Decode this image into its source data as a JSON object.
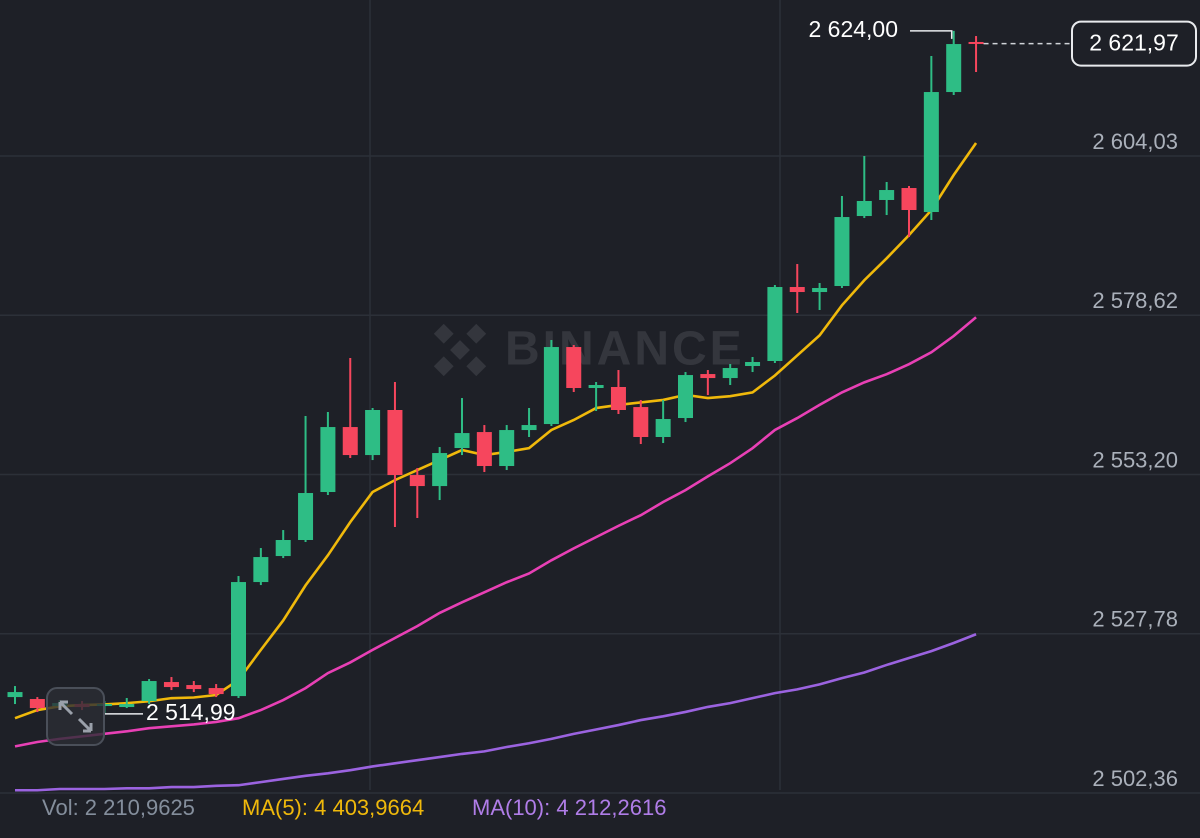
{
  "chart_data": {
    "type": "candlestick",
    "ylim": [
      2498.05,
      2628.93
    ],
    "yticks": [
      {
        "value": 2502.36,
        "label": "2 502,36"
      },
      {
        "value": 2527.78,
        "label": "2 527,78"
      },
      {
        "value": 2553.2,
        "label": "2 553,20"
      },
      {
        "value": 2578.62,
        "label": "2 578,62"
      },
      {
        "value": 2604.03,
        "label": "2 604,03"
      }
    ],
    "grid": true,
    "watermark": "BINANCE",
    "candles": {
      "up_color": "#2ebd85",
      "down_color": "#f6465d",
      "open": [
        2517.67,
        2517.36,
        2516.24,
        2516.56,
        2516.24,
        2516.08,
        2517.04,
        2520.07,
        2519.59,
        2519.11,
        2517.83,
        2536.03,
        2540.18,
        2542.74,
        2550.4,
        2560.77,
        2556.3,
        2563.49,
        2553.11,
        2551.35,
        2557.42,
        2559.97,
        2554.55,
        2560.29,
        2561.25,
        2573.54,
        2567.0,
        2567.16,
        2563.96,
        2559.18,
        2562.21,
        2569.23,
        2568.59,
        2570.51,
        2571.31,
        2583.12,
        2582.32,
        2583.28,
        2594.45,
        2597.01,
        2598.92,
        2595.09,
        2614.24,
        2622.23
      ],
      "high": [
        2519.43,
        2517.67,
        2517.2,
        2517.04,
        2517.04,
        2517.52,
        2520.55,
        2520.87,
        2520.23,
        2519.75,
        2536.99,
        2541.46,
        2544.33,
        2562.53,
        2563.17,
        2571.79,
        2563.81,
        2567.96,
        2554.23,
        2557.58,
        2565.4,
        2561.09,
        2561.09,
        2563.81,
        2574.66,
        2573.86,
        2567.96,
        2569.87,
        2565.08,
        2565.08,
        2569.55,
        2569.87,
        2570.83,
        2571.95,
        2583.44,
        2586.79,
        2583.76,
        2597.64,
        2604.03,
        2599.88,
        2599.24,
        2619.99,
        2624.0,
        2623.18
      ],
      "low": [
        2516.56,
        2515.28,
        2515.76,
        2515.6,
        2514.99,
        2515.92,
        2516.56,
        2518.79,
        2518.47,
        2517.67,
        2517.52,
        2535.55,
        2539.86,
        2542.42,
        2549.92,
        2555.82,
        2555.5,
        2544.81,
        2546.25,
        2549.12,
        2556.3,
        2553.59,
        2553.91,
        2559.18,
        2560.93,
        2566.36,
        2563.33,
        2562.85,
        2558.06,
        2558.22,
        2561.57,
        2565.88,
        2567.48,
        2569.55,
        2570.99,
        2578.97,
        2579.45,
        2582.96,
        2594.13,
        2594.61,
        2591.1,
        2593.81,
        2613.77,
        2617.44
      ],
      "close": [
        2518.47,
        2515.92,
        2516.72,
        2516.08,
        2516.56,
        2516.56,
        2520.23,
        2519.27,
        2518.95,
        2518.15,
        2536.03,
        2540.02,
        2542.74,
        2550.24,
        2560.77,
        2556.3,
        2563.49,
        2553.11,
        2551.35,
        2556.62,
        2559.81,
        2554.55,
        2560.29,
        2561.09,
        2573.54,
        2567.0,
        2567.48,
        2563.49,
        2559.18,
        2562.05,
        2569.07,
        2568.59,
        2570.19,
        2571.15,
        2583.12,
        2582.32,
        2582.96,
        2594.29,
        2596.85,
        2598.6,
        2595.41,
        2614.24,
        2621.9,
        2621.97
      ]
    },
    "series": [
      {
        "color": "#f0b90b",
        "values": [
          2514.3,
          2515.6,
          2516.2,
          2516.4,
          2516.5,
          2516.7,
          2517.0,
          2517.5,
          2517.6,
          2518.0,
          2520.4,
          2525.2,
          2529.9,
          2535.5,
          2540.3,
          2545.6,
          2550.4,
          2552.3,
          2553.9,
          2555.5,
          2557.1,
          2556.3,
          2556.8,
          2557.4,
          2560.3,
          2561.9,
          2563.8,
          2564.3,
          2564.7,
          2565.1,
          2565.9,
          2565.4,
          2565.7,
          2566.3,
          2569.0,
          2572.2,
          2575.4,
          2580.2,
          2584.2,
          2587.7,
          2591.4,
          2595.4,
          2601.0,
          2606.1
        ]
      },
      {
        "color": "#e840b5",
        "values": [
          2509.8,
          2510.5,
          2511.0,
          2511.4,
          2511.8,
          2512.2,
          2512.7,
          2513.0,
          2513.3,
          2513.7,
          2514.3,
          2515.6,
          2517.2,
          2519.1,
          2521.5,
          2523.2,
          2525.2,
          2527.1,
          2529.0,
          2531.1,
          2532.8,
          2534.4,
          2536.0,
          2537.4,
          2539.5,
          2541.4,
          2543.2,
          2545.0,
          2546.7,
          2548.8,
          2550.7,
          2552.9,
          2555.0,
          2557.4,
          2560.3,
          2562.2,
          2564.3,
          2566.3,
          2567.9,
          2569.2,
          2570.8,
          2572.7,
          2575.3,
          2578.3
        ]
      },
      {
        "color": "#9b63e0",
        "values": [
          2502.8,
          2502.8,
          2503.0,
          2503.0,
          2503.0,
          2503.1,
          2503.1,
          2503.3,
          2503.3,
          2503.5,
          2503.6,
          2504.1,
          2504.6,
          2505.1,
          2505.5,
          2506.0,
          2506.6,
          2507.1,
          2507.6,
          2508.1,
          2508.6,
          2509.0,
          2509.7,
          2510.3,
          2511.0,
          2511.8,
          2512.5,
          2513.2,
          2514.0,
          2514.6,
          2515.3,
          2516.1,
          2516.7,
          2517.5,
          2518.3,
          2518.9,
          2519.7,
          2520.7,
          2521.6,
          2522.8,
          2523.9,
          2525.0,
          2526.3,
          2527.7
        ]
      }
    ],
    "high_label": "2 624,00",
    "last_price_label": "2 621,97",
    "low_label": "2 514,99",
    "footer": [
      {
        "text": "Vol: 2 210,9625",
        "color": "#848e9c"
      },
      {
        "text": "MA(5): 4 403,9664",
        "color": "#f0b90b"
      },
      {
        "text": "MA(10): 4 212,2616",
        "color": "#b07de8"
      }
    ]
  }
}
